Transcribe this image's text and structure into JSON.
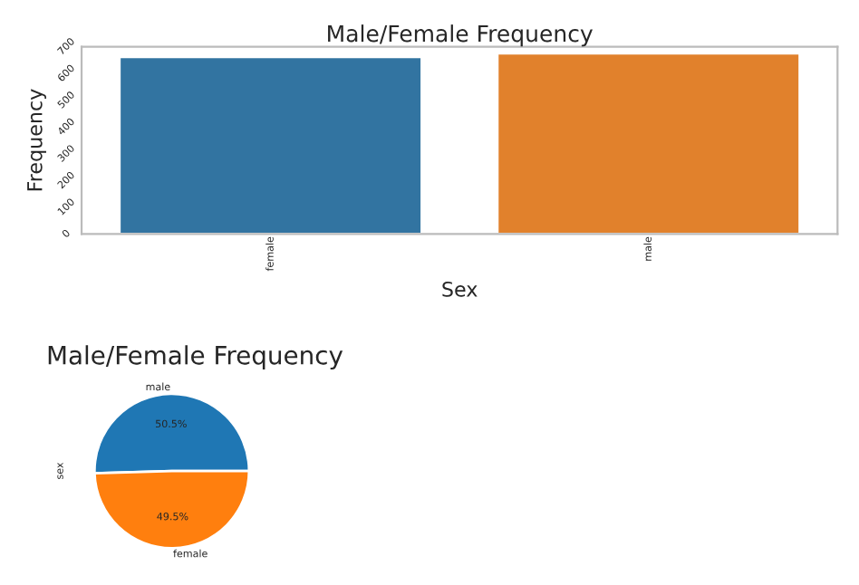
{
  "chart_data": [
    {
      "type": "bar",
      "title": "Male/Female Frequency",
      "xlabel": "Sex",
      "ylabel": "Frequency",
      "categories": [
        "female",
        "male"
      ],
      "values": [
        662,
        676
      ],
      "colors": [
        "#3274a1",
        "#e1812c"
      ],
      "ylim": [
        0,
        700
      ],
      "yticks": [
        0,
        100,
        200,
        300,
        400,
        500,
        600,
        700
      ],
      "grid": false,
      "legend": false
    },
    {
      "type": "pie",
      "title": "Male/Female Frequency",
      "ylabel": "sex",
      "categories": [
        "male",
        "female"
      ],
      "values": [
        50.5,
        49.5
      ],
      "colors": [
        "#1f77b4",
        "#ff7f0e"
      ],
      "value_labels": [
        "50.5%",
        "49.5%"
      ]
    }
  ]
}
